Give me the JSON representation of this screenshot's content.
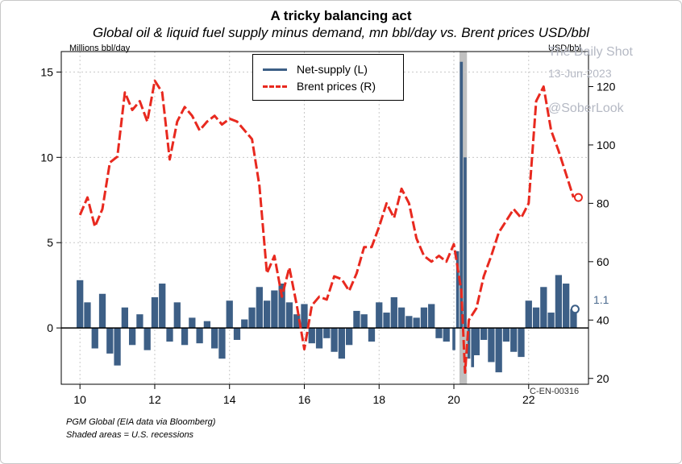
{
  "title": "A tricky balancing act",
  "subtitle": "Global oil & liquid fuel supply minus demand, mn bbl/day vs. Brent prices USD/bbl",
  "left_axis_unit": "Millions bbl/day",
  "right_axis_unit": "USD/bbl",
  "watermark": {
    "line1": "The Daily Shot",
    "line2": "13-Jun-2023",
    "line3": "@SoberLook"
  },
  "code": "C-EN-00316",
  "source_lines": [
    "PGM Global (EIA data via Bloomberg)",
    "Shaded areas = U.S. recessions"
  ],
  "last_value_label": "1.1",
  "colors": {
    "supply": "#3d5f86",
    "brent": "#e8291f",
    "recession": "#c0c0c0",
    "grid": "#c8c8c8"
  },
  "chart_data": {
    "type": "bar+line",
    "title": "A tricky balancing act",
    "subtitle": "Global oil & liquid fuel supply minus demand, mn bbl/day vs. Brent prices USD/bbl",
    "x_axis": {
      "range": [
        9.5,
        23.6
      ],
      "ticks": [
        10,
        12,
        14,
        16,
        18,
        20,
        22
      ],
      "tick_labels": [
        "10",
        "12",
        "14",
        "16",
        "18",
        "20",
        "22"
      ]
    },
    "y_left": {
      "label": "Millions bbl/day",
      "range": [
        -3.3,
        16.2
      ],
      "ticks": [
        0,
        5,
        10,
        15
      ],
      "tick_labels": [
        "0",
        "5",
        "10",
        "15"
      ]
    },
    "y_right": {
      "label": "USD/bbl",
      "range": [
        18,
        132
      ],
      "ticks": [
        20,
        40,
        60,
        80,
        100,
        120
      ],
      "tick_labels": [
        "20",
        "40",
        "60",
        "80",
        "100",
        "120"
      ]
    },
    "recessions": [
      [
        20.15,
        20.35
      ]
    ],
    "legend": [
      {
        "name": "Net-supply (L)",
        "style": "bars"
      },
      {
        "name": "Brent prices (R)",
        "style": "dashed line"
      }
    ],
    "series": [
      {
        "name": "Net-supply (L)",
        "axis": "left",
        "type": "bar",
        "x": [
          10.0,
          10.2,
          10.4,
          10.6,
          10.8,
          11.0,
          11.2,
          11.4,
          11.6,
          11.8,
          12.0,
          12.2,
          12.4,
          12.6,
          12.8,
          13.0,
          13.2,
          13.4,
          13.6,
          13.8,
          14.0,
          14.2,
          14.4,
          14.6,
          14.8,
          15.0,
          15.2,
          15.4,
          15.6,
          15.8,
          16.0,
          16.2,
          16.4,
          16.6,
          16.8,
          17.0,
          17.2,
          17.4,
          17.6,
          17.8,
          18.0,
          18.2,
          18.4,
          18.6,
          18.8,
          19.0,
          19.2,
          19.4,
          19.6,
          19.8,
          20.0,
          20.1,
          20.2,
          20.3,
          20.4,
          20.5,
          20.6,
          20.8,
          21.0,
          21.2,
          21.4,
          21.6,
          21.8,
          22.0,
          22.2,
          22.4,
          22.6,
          22.8,
          23.0,
          23.2
        ],
        "values": [
          2.8,
          1.5,
          -1.2,
          2.0,
          -1.5,
          -2.2,
          1.2,
          -1.0,
          0.8,
          -1.3,
          1.8,
          2.6,
          -0.8,
          1.5,
          -1.0,
          0.6,
          -0.9,
          0.4,
          -1.2,
          -1.8,
          1.6,
          -0.7,
          0.5,
          1.2,
          2.4,
          1.6,
          2.2,
          2.6,
          1.5,
          0.8,
          1.4,
          -0.9,
          -1.2,
          -0.6,
          -1.4,
          -1.8,
          -1.0,
          1.0,
          0.8,
          -0.8,
          1.5,
          0.9,
          1.8,
          1.2,
          0.7,
          0.6,
          1.2,
          1.4,
          -0.6,
          -0.8,
          -1.3,
          4.5,
          15.6,
          10.0,
          -1.8,
          -2.3,
          -1.6,
          -0.7,
          -2.0,
          -2.6,
          -0.8,
          -1.4,
          -1.7,
          1.6,
          1.2,
          2.4,
          0.9,
          3.1,
          2.6,
          1.1
        ]
      },
      {
        "name": "Brent prices (R)",
        "axis": "right",
        "type": "line",
        "x": [
          10.0,
          10.2,
          10.4,
          10.6,
          10.8,
          11.0,
          11.2,
          11.4,
          11.6,
          11.8,
          12.0,
          12.2,
          12.4,
          12.6,
          12.8,
          13.0,
          13.2,
          13.4,
          13.6,
          13.8,
          14.0,
          14.2,
          14.4,
          14.6,
          14.8,
          15.0,
          15.2,
          15.4,
          15.6,
          15.8,
          16.0,
          16.2,
          16.4,
          16.6,
          16.8,
          17.0,
          17.2,
          17.4,
          17.6,
          17.8,
          18.0,
          18.2,
          18.4,
          18.6,
          18.8,
          19.0,
          19.2,
          19.4,
          19.6,
          19.8,
          20.0,
          20.2,
          20.3,
          20.4,
          20.6,
          20.8,
          21.0,
          21.2,
          21.4,
          21.6,
          21.8,
          22.0,
          22.2,
          22.4,
          22.6,
          22.8,
          23.0,
          23.2
        ],
        "values": [
          76,
          82,
          72,
          78,
          94,
          96,
          118,
          112,
          115,
          108,
          122,
          118,
          95,
          108,
          113,
          110,
          105,
          108,
          110,
          107,
          109,
          108,
          105,
          102,
          86,
          56,
          62,
          48,
          58,
          45,
          30,
          45,
          48,
          47,
          55,
          54,
          50,
          56,
          65,
          65,
          72,
          80,
          75,
          85,
          80,
          68,
          62,
          60,
          62,
          60,
          66,
          50,
          22,
          40,
          44,
          55,
          62,
          70,
          74,
          78,
          75,
          80,
          115,
          120,
          105,
          98,
          90,
          82
        ]
      }
    ],
    "annotations": [
      {
        "text": "1.1",
        "series": "Net-supply (L)"
      }
    ]
  }
}
